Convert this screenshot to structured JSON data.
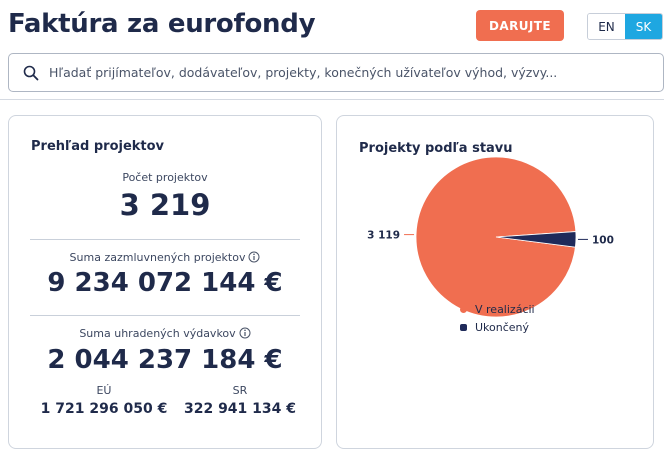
{
  "header": {
    "title": "Faktúra za eurofondy",
    "donate_label": "DARUJTE",
    "lang_en": "EN",
    "lang_sk": "SK",
    "active_lang": "SK"
  },
  "search": {
    "placeholder": "Hľadať prijímateľov, dodávateľov, projekty, konečných užívateľov výhod, výzvy..."
  },
  "overview": {
    "title": "Prehľad projektov",
    "count_label": "Počet projektov",
    "count_value": "3 219",
    "contracted_label": "Suma zazmluvnených projektov",
    "contracted_value": "9 234 072 144 €",
    "paid_label": "Suma uhradených výdavkov",
    "paid_value": "2 044 237 184 €",
    "eu_label": "EÚ",
    "eu_value": "1 721 296 050 €",
    "sr_label": "SR",
    "sr_value": "322 941 134 €"
  },
  "status_card": {
    "title": "Projekty podľa stavu"
  },
  "chart_data": {
    "type": "pie",
    "title": "Projekty podľa stavu",
    "categories": [
      "V realizácii",
      "Ukončený"
    ],
    "values": [
      3119,
      100
    ],
    "data_labels": [
      "3 119",
      "100"
    ],
    "colors": [
      "#f06e50",
      "#1f2a5a"
    ],
    "legend_position": "bottom"
  },
  "colors": {
    "accent": "#f06e50",
    "navy": "#1f2a4a",
    "sk_active": "#1ea7e1"
  },
  "icons": {
    "search": "search-icon",
    "info": "info-icon"
  }
}
